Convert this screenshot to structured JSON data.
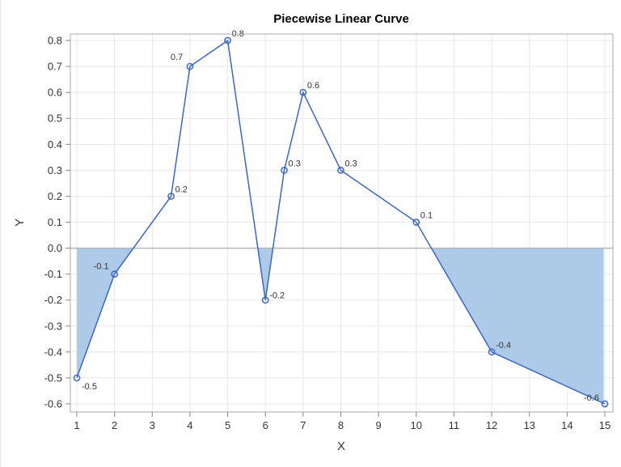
{
  "chart_data": {
    "type": "line",
    "title": "Piecewise Linear Curve",
    "xlabel": "X",
    "ylabel": "Y",
    "xlim": [
      1,
      15
    ],
    "ylim": [
      -0.6,
      0.8
    ],
    "x_ticks": [
      1,
      2,
      3,
      4,
      5,
      6,
      7,
      8,
      9,
      10,
      11,
      12,
      13,
      14,
      15
    ],
    "y_ticks": [
      -0.6,
      -0.5,
      -0.4,
      -0.3,
      -0.2,
      -0.1,
      0.0,
      0.1,
      0.2,
      0.3,
      0.4,
      0.5,
      0.6,
      0.7,
      0.8
    ],
    "grid": true,
    "reference_line_y": 0,
    "fill": "area between curve and 0 where curve is negative",
    "series": [
      {
        "x": [
          1,
          2,
          3.5,
          4,
          5,
          6,
          6.5,
          7,
          8,
          10,
          12,
          15
        ],
        "y": [
          -0.5,
          -0.1,
          0.2,
          0.7,
          0.8,
          -0.2,
          0.3,
          0.6,
          0.3,
          0.1,
          -0.4,
          -0.6
        ],
        "labels": [
          "-0.5",
          "-0.1",
          "0.2",
          "0.7",
          "0.8",
          "-0.2",
          "0.3",
          "0.6",
          "0.3",
          "0.1",
          "-0.4",
          "-0.6"
        ]
      }
    ],
    "colors": {
      "line": "#3a67c2",
      "fill": "#a9c8e8",
      "grid": "#e8e8e8",
      "zero_line": "#b5b5b5"
    }
  }
}
